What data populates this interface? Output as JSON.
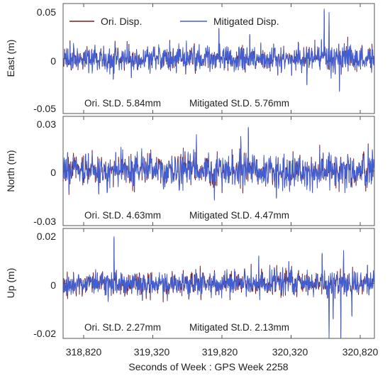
{
  "chart_data": {
    "type": "line",
    "xlabel": "Seconds of Week : GPS Week 2258",
    "x_ticks": [
      "318,820",
      "319,320",
      "319,820",
      "320,320",
      "320,820"
    ],
    "xlim": [
      318820,
      320820
    ],
    "legend": {
      "placement": "top-left",
      "entries": [
        {
          "label": "Ori. Disp.",
          "color": "#7a1f1f"
        },
        {
          "label": "Mitigated Disp.",
          "color": "#3f5fd6"
        }
      ]
    },
    "colors": {
      "original": "#7a1f1f",
      "mitigated": "#3f5fd6"
    },
    "panels": [
      {
        "ylabel": "East (m)",
        "ylim": [
          -0.05,
          0.05
        ],
        "y_ticks": [
          {
            "value": 0.05,
            "label": "0.05"
          },
          {
            "value": 0,
            "label": "0"
          },
          {
            "value": -0.05,
            "label": "-0.05"
          }
        ],
        "ori_std_label": "Ori. St.D. 5.84mm",
        "mit_std_label": "Mitigated St.D. 5.76mm",
        "std_mm": {
          "original": 5.84,
          "mitigated": 5.76
        },
        "seed": 11,
        "spikes": [
          {
            "t": 319035,
            "y": -0.019
          },
          {
            "t": 320020,
            "y": 0.022
          },
          {
            "t": 320435,
            "y": -0.024
          },
          {
            "t": 320560,
            "y": 0.045
          },
          {
            "t": 320595,
            "y": 0.042
          },
          {
            "t": 320610,
            "y": -0.018
          },
          {
            "t": 320670,
            "y": -0.03
          }
        ]
      },
      {
        "ylabel": "North (m)",
        "ylim": [
          -0.03,
          0.03
        ],
        "y_ticks": [
          {
            "value": 0.03,
            "label": "0.03"
          },
          {
            "value": 0,
            "label": "0"
          },
          {
            "value": -0.03,
            "label": "-0.03"
          }
        ],
        "ori_std_label": "Ori. St.D. 4.63mm",
        "mit_std_label": "Mitigated St.D. 4.47mm",
        "std_mm": {
          "original": 4.63,
          "mitigated": 4.47
        },
        "seed": 23,
        "spikes": [
          {
            "t": 318990,
            "y": -0.012
          },
          {
            "t": 319090,
            "y": 0.013
          },
          {
            "t": 319635,
            "y": 0.02
          },
          {
            "t": 319765,
            "y": -0.016
          },
          {
            "t": 319955,
            "y": 0.019
          },
          {
            "t": 320010,
            "y": 0.024
          },
          {
            "t": 320215,
            "y": -0.015
          },
          {
            "t": 320475,
            "y": -0.012
          },
          {
            "t": 320710,
            "y": -0.012
          }
        ]
      },
      {
        "ylabel": "Up (m)",
        "ylim": [
          -0.02,
          0.02
        ],
        "y_ticks": [
          {
            "value": 0.02,
            "label": "0.02"
          },
          {
            "value": 0,
            "label": "0"
          },
          {
            "value": -0.02,
            "label": "-0.02"
          }
        ],
        "ori_std_label": "Ori. St.D. 2.27mm",
        "mit_std_label": "Mitigated St.D. 2.13mm",
        "std_mm": {
          "original": 2.27,
          "mitigated": 2.13
        },
        "seed": 37,
        "spikes": [
          {
            "t": 319040,
            "y": 0.017
          },
          {
            "t": 320085,
            "y": 0.01
          },
          {
            "t": 320305,
            "y": 0.008
          },
          {
            "t": 320545,
            "y": 0.011
          },
          {
            "t": 320595,
            "y": -0.021
          },
          {
            "t": 320625,
            "y": -0.013
          },
          {
            "t": 320680,
            "y": -0.021
          },
          {
            "t": 320700,
            "y": 0.012
          },
          {
            "t": 320760,
            "y": -0.012
          }
        ]
      }
    ]
  }
}
